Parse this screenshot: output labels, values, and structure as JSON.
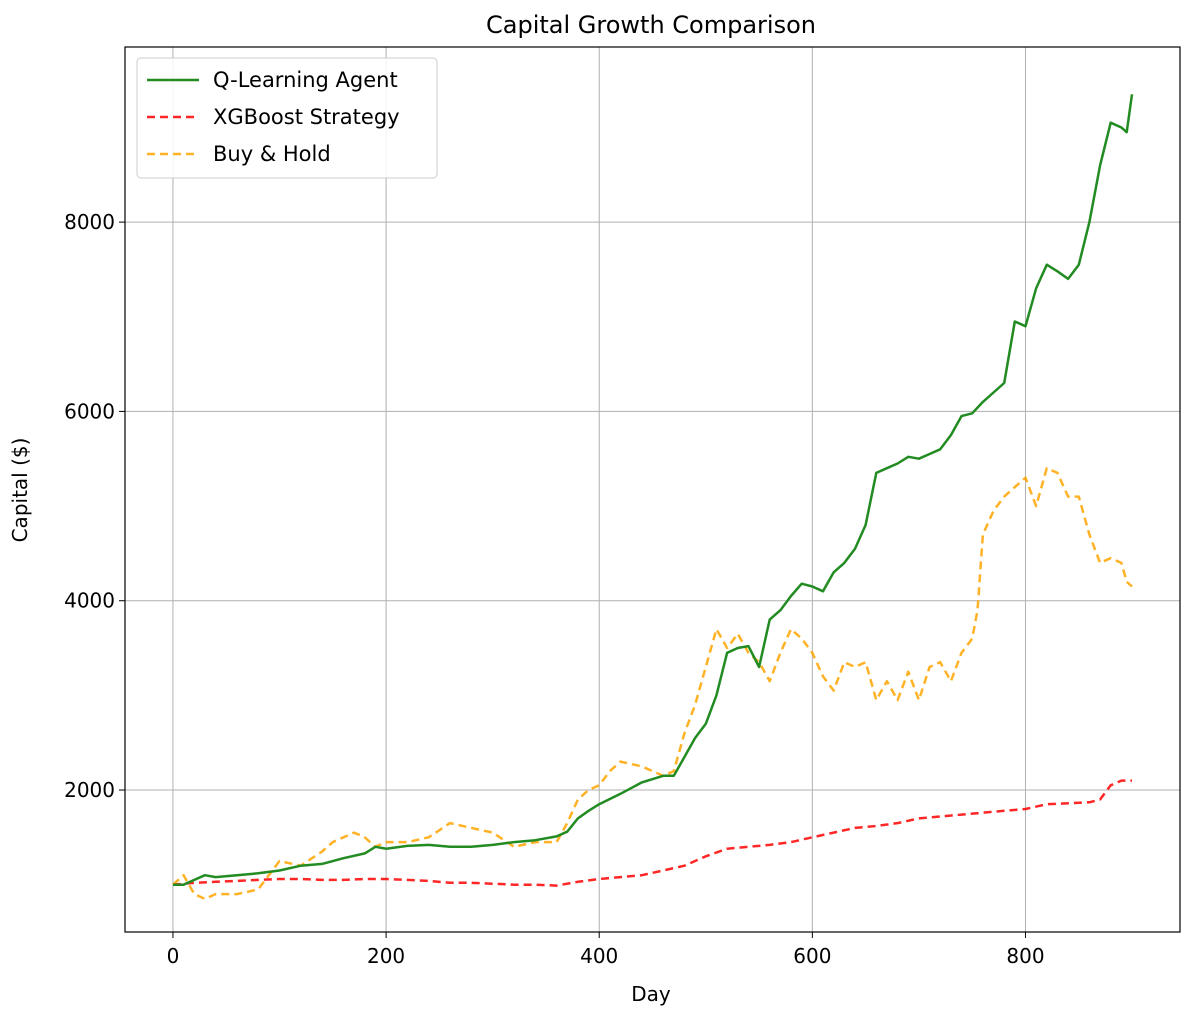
{
  "chart_data": {
    "type": "line",
    "title": "Capital Growth Comparison",
    "xlabel": "Day",
    "ylabel": "Capital ($)",
    "xlim": [
      -45,
      945
    ],
    "ylim": [
      500,
      9850
    ],
    "xticks": [
      0,
      200,
      400,
      600,
      800
    ],
    "yticks": [
      2000,
      4000,
      6000,
      8000
    ],
    "grid": true,
    "legend_position": "top-left",
    "series": [
      {
        "name": "Q-Learning Agent",
        "color": "#228b22",
        "style": "solid",
        "x": [
          0,
          10,
          20,
          30,
          40,
          60,
          80,
          100,
          120,
          140,
          160,
          180,
          190,
          200,
          220,
          240,
          260,
          280,
          300,
          320,
          340,
          360,
          370,
          380,
          390,
          400,
          420,
          440,
          460,
          470,
          480,
          490,
          500,
          510,
          520,
          530,
          540,
          550,
          560,
          570,
          580,
          590,
          600,
          610,
          620,
          630,
          640,
          650,
          660,
          670,
          680,
          690,
          700,
          710,
          720,
          730,
          740,
          750,
          760,
          770,
          780,
          790,
          800,
          810,
          820,
          830,
          840,
          850,
          860,
          870,
          880,
          890,
          895,
          900
        ],
        "y": [
          1000,
          1000,
          1050,
          1100,
          1080,
          1100,
          1120,
          1150,
          1200,
          1220,
          1280,
          1330,
          1400,
          1380,
          1410,
          1420,
          1400,
          1400,
          1420,
          1450,
          1470,
          1510,
          1560,
          1700,
          1780,
          1850,
          1960,
          2080,
          2150,
          2150,
          2350,
          2550,
          2700,
          3000,
          3450,
          3500,
          3520,
          3300,
          3800,
          3900,
          4050,
          4180,
          4150,
          4100,
          4300,
          4400,
          4550,
          4800,
          5350,
          5400,
          5450,
          5520,
          5500,
          5550,
          5600,
          5750,
          5950,
          5980,
          6100,
          6200,
          6300,
          6950,
          6900,
          7300,
          7550,
          7480,
          7400,
          7550,
          8000,
          8600,
          9050,
          9000,
          8950,
          9350
        ]
      },
      {
        "name": "XGBoost Strategy",
        "color": "#ff0000",
        "style": "dashed",
        "x": [
          0,
          20,
          40,
          60,
          80,
          100,
          120,
          140,
          160,
          180,
          200,
          220,
          240,
          260,
          280,
          300,
          320,
          340,
          360,
          380,
          400,
          420,
          440,
          460,
          480,
          500,
          520,
          540,
          560,
          580,
          600,
          620,
          640,
          660,
          680,
          700,
          720,
          740,
          760,
          780,
          800,
          820,
          840,
          860,
          870,
          880,
          890,
          900
        ],
        "y": [
          1000,
          1020,
          1030,
          1040,
          1050,
          1060,
          1060,
          1050,
          1050,
          1060,
          1060,
          1050,
          1040,
          1020,
          1020,
          1010,
          1000,
          1000,
          990,
          1030,
          1060,
          1080,
          1100,
          1150,
          1200,
          1300,
          1380,
          1400,
          1420,
          1450,
          1500,
          1550,
          1600,
          1620,
          1650,
          1700,
          1720,
          1740,
          1760,
          1780,
          1800,
          1850,
          1860,
          1870,
          1900,
          2050,
          2100,
          2100
        ]
      },
      {
        "name": "Buy & Hold",
        "color": "#ffa500",
        "style": "dashed",
        "x": [
          0,
          10,
          20,
          30,
          40,
          60,
          80,
          100,
          120,
          140,
          150,
          160,
          170,
          180,
          190,
          200,
          220,
          240,
          260,
          280,
          300,
          320,
          340,
          360,
          370,
          380,
          390,
          400,
          410,
          420,
          440,
          460,
          470,
          480,
          490,
          500,
          510,
          520,
          530,
          540,
          550,
          560,
          570,
          580,
          590,
          600,
          610,
          620,
          630,
          640,
          650,
          660,
          670,
          680,
          690,
          700,
          710,
          720,
          730,
          740,
          750,
          755,
          760,
          770,
          780,
          790,
          800,
          810,
          820,
          830,
          840,
          850,
          860,
          870,
          880,
          890,
          895,
          900
        ],
        "y": [
          1000,
          1100,
          900,
          850,
          900,
          900,
          950,
          1250,
          1200,
          1350,
          1450,
          1500,
          1550,
          1500,
          1400,
          1450,
          1450,
          1500,
          1650,
          1600,
          1550,
          1400,
          1450,
          1450,
          1650,
          1900,
          2000,
          2050,
          2200,
          2300,
          2250,
          2150,
          2200,
          2600,
          2900,
          3300,
          3700,
          3500,
          3650,
          3450,
          3350,
          3150,
          3450,
          3700,
          3600,
          3450,
          3200,
          3050,
          3350,
          3300,
          3350,
          2950,
          3150,
          2950,
          3250,
          2950,
          3300,
          3350,
          3150,
          3450,
          3600,
          3900,
          4700,
          4950,
          5100,
          5200,
          5300,
          5000,
          5400,
          5350,
          5100,
          5100,
          4700,
          4400,
          4450,
          4400,
          4200,
          4150
        ]
      }
    ]
  }
}
